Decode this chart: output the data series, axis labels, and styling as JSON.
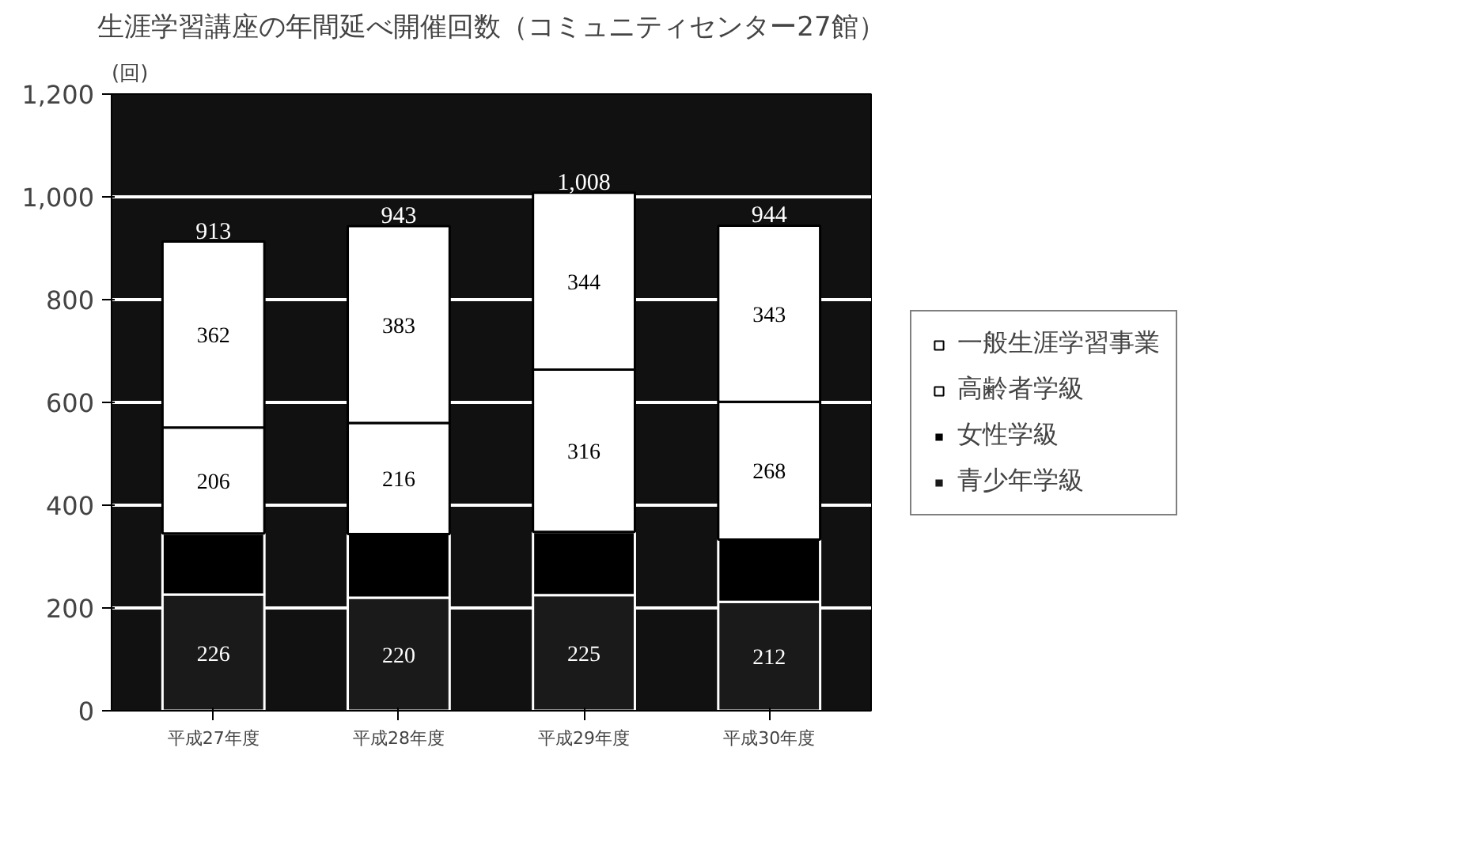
{
  "chart_data": {
    "type": "bar",
    "stacked": true,
    "title": "生涯学習講座の年間延べ開催回数（コミュニティセンター27館）",
    "ylabel": "(回)",
    "categories": [
      "平成27年度",
      "平成28年度",
      "平成29年度",
      "平成30年度"
    ],
    "series": [
      {
        "name": "青少年学級",
        "color": "#1a1a1a",
        "values": [
          226,
          220,
          225,
          212
        ],
        "value_labels": [
          "226",
          "220",
          "225",
          "212"
        ]
      },
      {
        "name": "女性学級",
        "color": "#000000",
        "values": [
          119,
          124,
          123,
          121
        ]
      },
      {
        "name": "高齢者学級",
        "color": "#ffffff",
        "values": [
          206,
          216,
          316,
          268
        ],
        "value_labels": [
          "206",
          "216",
          "316",
          "268"
        ]
      },
      {
        "name": "一般生涯学習事業",
        "color": "#ffffff",
        "values": [
          362,
          383,
          344,
          343
        ],
        "value_labels": [
          "362",
          "383",
          "344",
          "343"
        ]
      }
    ],
    "totals": [
      "913",
      "943",
      "1,008",
      "944"
    ],
    "ylim": [
      0,
      1200
    ],
    "yticks": [
      0,
      {
        "value": 200,
        "label": "200"
      },
      {
        "value": 400,
        "label": "400"
      },
      {
        "value": 600,
        "label": "600"
      },
      {
        "value": 800,
        "label": "800"
      },
      {
        "value": 1000,
        "label": "1,000"
      },
      {
        "value": 1200,
        "label": "1,200"
      }
    ],
    "grid": "y",
    "legend": "right"
  }
}
